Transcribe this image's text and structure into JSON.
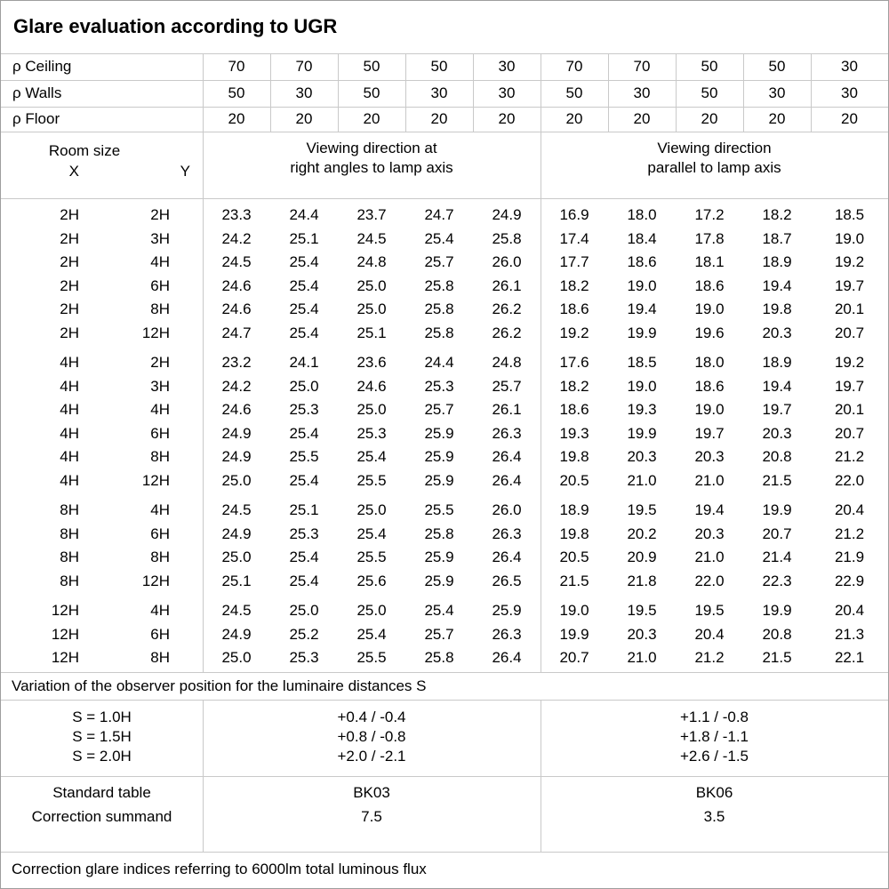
{
  "title": "Glare evaluation according to UGR",
  "reflectance_rows": [
    {
      "label": "ρ Ceiling",
      "values": [
        "70",
        "70",
        "50",
        "50",
        "30",
        "70",
        "70",
        "50",
        "50",
        "30"
      ]
    },
    {
      "label": "ρ Walls",
      "values": [
        "50",
        "30",
        "50",
        "30",
        "30",
        "50",
        "30",
        "50",
        "30",
        "30"
      ]
    },
    {
      "label": "ρ Floor",
      "values": [
        "20",
        "20",
        "20",
        "20",
        "20",
        "20",
        "20",
        "20",
        "20",
        "20"
      ]
    }
  ],
  "section_header": {
    "room_size": "Room size",
    "x": "X",
    "y": "Y",
    "right_angles_line1": "Viewing direction at",
    "right_angles_line2": "right angles to lamp axis",
    "parallel_line1": "Viewing direction",
    "parallel_line2": "parallel to lamp axis"
  },
  "ugr_groups": [
    {
      "rows": [
        {
          "x": "2H",
          "y": "2H",
          "right_angle": [
            "23.3",
            "24.4",
            "23.7",
            "24.7",
            "24.9"
          ],
          "parallel": [
            "16.9",
            "18.0",
            "17.2",
            "18.2",
            "18.5"
          ]
        },
        {
          "x": "2H",
          "y": "3H",
          "right_angle": [
            "24.2",
            "25.1",
            "24.5",
            "25.4",
            "25.8"
          ],
          "parallel": [
            "17.4",
            "18.4",
            "17.8",
            "18.7",
            "19.0"
          ]
        },
        {
          "x": "2H",
          "y": "4H",
          "right_angle": [
            "24.5",
            "25.4",
            "24.8",
            "25.7",
            "26.0"
          ],
          "parallel": [
            "17.7",
            "18.6",
            "18.1",
            "18.9",
            "19.2"
          ]
        },
        {
          "x": "2H",
          "y": "6H",
          "right_angle": [
            "24.6",
            "25.4",
            "25.0",
            "25.8",
            "26.1"
          ],
          "parallel": [
            "18.2",
            "19.0",
            "18.6",
            "19.4",
            "19.7"
          ]
        },
        {
          "x": "2H",
          "y": "8H",
          "right_angle": [
            "24.6",
            "25.4",
            "25.0",
            "25.8",
            "26.2"
          ],
          "parallel": [
            "18.6",
            "19.4",
            "19.0",
            "19.8",
            "20.1"
          ]
        },
        {
          "x": "2H",
          "y": "12H",
          "right_angle": [
            "24.7",
            "25.4",
            "25.1",
            "25.8",
            "26.2"
          ],
          "parallel": [
            "19.2",
            "19.9",
            "19.6",
            "20.3",
            "20.7"
          ]
        }
      ]
    },
    {
      "rows": [
        {
          "x": "4H",
          "y": "2H",
          "right_angle": [
            "23.2",
            "24.1",
            "23.6",
            "24.4",
            "24.8"
          ],
          "parallel": [
            "17.6",
            "18.5",
            "18.0",
            "18.9",
            "19.2"
          ]
        },
        {
          "x": "4H",
          "y": "3H",
          "right_angle": [
            "24.2",
            "25.0",
            "24.6",
            "25.3",
            "25.7"
          ],
          "parallel": [
            "18.2",
            "19.0",
            "18.6",
            "19.4",
            "19.7"
          ]
        },
        {
          "x": "4H",
          "y": "4H",
          "right_angle": [
            "24.6",
            "25.3",
            "25.0",
            "25.7",
            "26.1"
          ],
          "parallel": [
            "18.6",
            "19.3",
            "19.0",
            "19.7",
            "20.1"
          ]
        },
        {
          "x": "4H",
          "y": "6H",
          "right_angle": [
            "24.9",
            "25.4",
            "25.3",
            "25.9",
            "26.3"
          ],
          "parallel": [
            "19.3",
            "19.9",
            "19.7",
            "20.3",
            "20.7"
          ]
        },
        {
          "x": "4H",
          "y": "8H",
          "right_angle": [
            "24.9",
            "25.5",
            "25.4",
            "25.9",
            "26.4"
          ],
          "parallel": [
            "19.8",
            "20.3",
            "20.3",
            "20.8",
            "21.2"
          ]
        },
        {
          "x": "4H",
          "y": "12H",
          "right_angle": [
            "25.0",
            "25.4",
            "25.5",
            "25.9",
            "26.4"
          ],
          "parallel": [
            "20.5",
            "21.0",
            "21.0",
            "21.5",
            "22.0"
          ]
        }
      ]
    },
    {
      "rows": [
        {
          "x": "8H",
          "y": "4H",
          "right_angle": [
            "24.5",
            "25.1",
            "25.0",
            "25.5",
            "26.0"
          ],
          "parallel": [
            "18.9",
            "19.5",
            "19.4",
            "19.9",
            "20.4"
          ]
        },
        {
          "x": "8H",
          "y": "6H",
          "right_angle": [
            "24.9",
            "25.3",
            "25.4",
            "25.8",
            "26.3"
          ],
          "parallel": [
            "19.8",
            "20.2",
            "20.3",
            "20.7",
            "21.2"
          ]
        },
        {
          "x": "8H",
          "y": "8H",
          "right_angle": [
            "25.0",
            "25.4",
            "25.5",
            "25.9",
            "26.4"
          ],
          "parallel": [
            "20.5",
            "20.9",
            "21.0",
            "21.4",
            "21.9"
          ]
        },
        {
          "x": "8H",
          "y": "12H",
          "right_angle": [
            "25.1",
            "25.4",
            "25.6",
            "25.9",
            "26.5"
          ],
          "parallel": [
            "21.5",
            "21.8",
            "22.0",
            "22.3",
            "22.9"
          ]
        }
      ]
    },
    {
      "rows": [
        {
          "x": "12H",
          "y": "4H",
          "right_angle": [
            "24.5",
            "25.0",
            "25.0",
            "25.4",
            "25.9"
          ],
          "parallel": [
            "19.0",
            "19.5",
            "19.5",
            "19.9",
            "20.4"
          ]
        },
        {
          "x": "12H",
          "y": "6H",
          "right_angle": [
            "24.9",
            "25.2",
            "25.4",
            "25.7",
            "26.3"
          ],
          "parallel": [
            "19.9",
            "20.3",
            "20.4",
            "20.8",
            "21.3"
          ]
        },
        {
          "x": "12H",
          "y": "8H",
          "right_angle": [
            "25.0",
            "25.3",
            "25.5",
            "25.8",
            "26.4"
          ],
          "parallel": [
            "20.7",
            "21.0",
            "21.2",
            "21.5",
            "22.1"
          ]
        }
      ]
    }
  ],
  "variation_note": "Variation of the observer position for the luminaire distances S",
  "spacing_section": {
    "rows": [
      {
        "label": "S = 1.0H",
        "right_angle": "+0.4 / -0.4",
        "parallel": "+1.1 / -0.8"
      },
      {
        "label": "S = 1.5H",
        "right_angle": "+0.8 / -0.8",
        "parallel": "+1.8 / -1.1"
      },
      {
        "label": "S = 2.0H",
        "right_angle": "+2.0 / -2.1",
        "parallel": "+2.6 / -1.5"
      }
    ]
  },
  "standard_section": {
    "rows": [
      {
        "label": "Standard table",
        "right_angle": "BK03",
        "parallel": "BK06"
      },
      {
        "label": "Correction summand",
        "right_angle": "7.5",
        "parallel": "3.5"
      }
    ]
  },
  "footer_note": "Correction glare indices referring to 6000lm total luminous flux",
  "colors": {
    "text": "#000000",
    "background": "#ffffff",
    "grid_line": "#c9c9c9",
    "outer_border": "#9e9e9e"
  }
}
